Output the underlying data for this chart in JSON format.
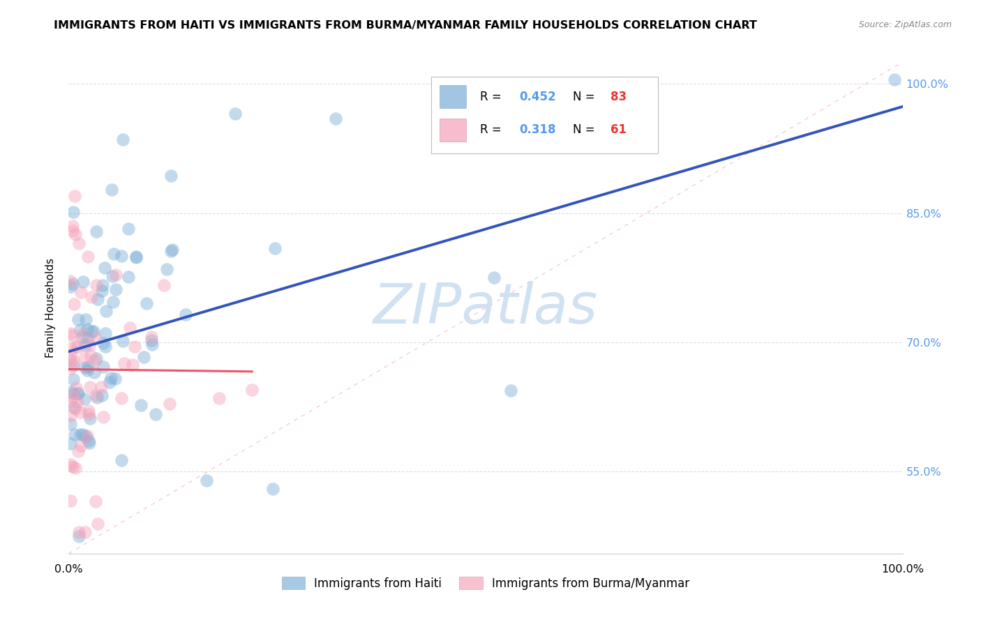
{
  "title": "IMMIGRANTS FROM HAITI VS IMMIGRANTS FROM BURMA/MYANMAR FAMILY HOUSEHOLDS CORRELATION CHART",
  "source": "Source: ZipAtlas.com",
  "ylabel": "Family Households",
  "watermark": "ZIPatlas",
  "legend_haiti": "Immigrants from Haiti",
  "legend_burma": "Immigrants from Burma/Myanmar",
  "R_haiti": 0.452,
  "N_haiti": 83,
  "R_burma": 0.318,
  "N_burma": 61,
  "color_haiti": "#7AADD6",
  "color_burma": "#F4A0B8",
  "color_trend_haiti": "#3355BB",
  "color_trend_burma": "#EE5566",
  "color_diagonal": "#F8BBCC",
  "xlim_min": 0.0,
  "xlim_max": 1.0,
  "ylim_min": 0.455,
  "ylim_max": 1.025,
  "yticks": [
    0.55,
    0.7,
    0.85,
    1.0
  ],
  "ytick_labels": [
    "55.0%",
    "70.0%",
    "85.0%",
    "100.0%"
  ],
  "title_fontsize": 11.5,
  "source_fontsize": 9,
  "ylabel_fontsize": 11,
  "legend_fontsize": 12,
  "watermark_fontsize": 58,
  "tick_label_fontsize": 11.5,
  "dot_size": 180,
  "dot_alpha": 0.45,
  "dot_linewidth": 1.4
}
